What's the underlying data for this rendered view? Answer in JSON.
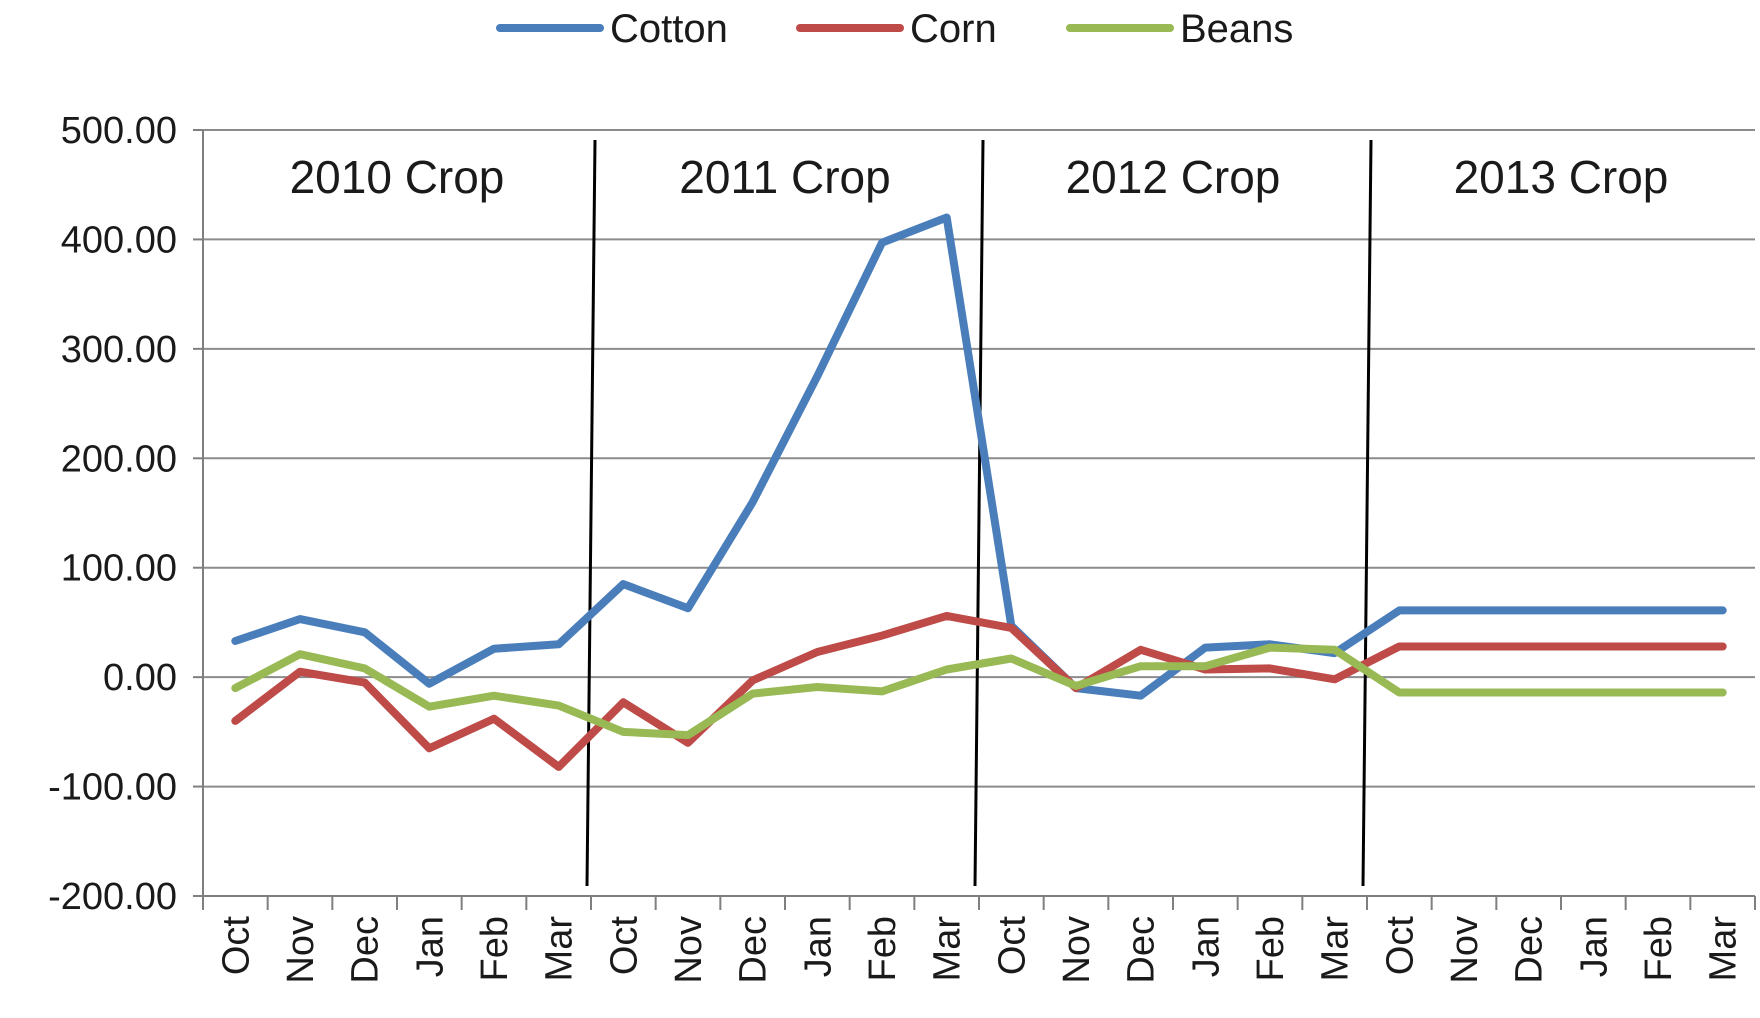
{
  "chart_data": {
    "type": "line",
    "title": "",
    "xlabel": "",
    "ylabel": "",
    "ylim": [
      -200,
      500
    ],
    "yticks": [
      500,
      400,
      300,
      200,
      100,
      0,
      -100,
      -200
    ],
    "ytick_labels": [
      "500.00",
      "400.00",
      "300.00",
      "200.00",
      "100.00",
      "0.00",
      "-100.00",
      "-200.00"
    ],
    "grid": true,
    "legend_position": "top-center",
    "categories": [
      "Oct",
      "Nov",
      "Dec",
      "Jan",
      "Feb",
      "Mar",
      "Oct",
      "Nov",
      "Dec",
      "Jan",
      "Feb",
      "Mar",
      "Oct",
      "Nov",
      "Dec",
      "Jan",
      "Feb",
      "Mar",
      "Oct",
      "Nov",
      "Dec",
      "Jan",
      "Feb",
      "Mar"
    ],
    "crop_groups": [
      {
        "label": "2010 Crop",
        "start": 0,
        "end": 5
      },
      {
        "label": "2011 Crop",
        "start": 6,
        "end": 11
      },
      {
        "label": "2012 Crop",
        "start": 12,
        "end": 17
      },
      {
        "label": "2013 Crop",
        "start": 18,
        "end": 23
      }
    ],
    "series": [
      {
        "name": "Cotton",
        "color": "#4a7ebb",
        "values": [
          33,
          53,
          41,
          -6,
          26,
          30,
          85,
          63,
          160,
          275,
          397,
          420,
          47,
          -10,
          -17,
          27,
          30,
          22,
          61,
          61,
          61,
          61,
          61,
          61
        ]
      },
      {
        "name": "Corn",
        "color": "#be4b48",
        "values": [
          -40,
          5,
          -5,
          -65,
          -38,
          -82,
          -23,
          -60,
          -3,
          23,
          38,
          56,
          45,
          -10,
          25,
          7,
          8,
          -2,
          28,
          28,
          28,
          28,
          28,
          28
        ]
      },
      {
        "name": "Beans",
        "color": "#98b954",
        "values": [
          -10,
          21,
          8,
          -27,
          -17,
          -26,
          -50,
          -53,
          -15,
          -9,
          -13,
          7,
          17,
          -8,
          10,
          10,
          27,
          25,
          -14,
          -14,
          -14,
          -14,
          -14,
          -14
        ]
      }
    ]
  }
}
